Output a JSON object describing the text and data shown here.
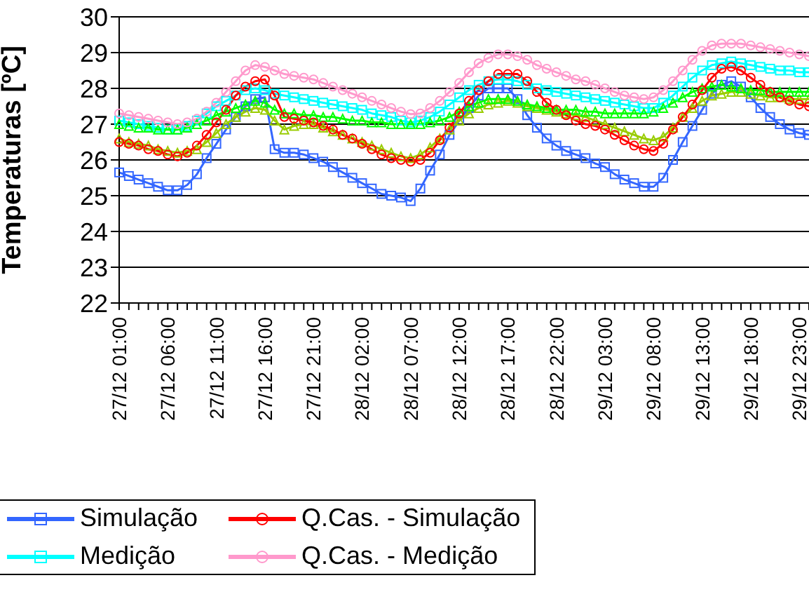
{
  "chart_data": {
    "type": "line",
    "ylabel": "Temperaturas [ºC]",
    "categories": [
      "27/12 01:00",
      null,
      null,
      null,
      null,
      "27/12 06:00",
      null,
      null,
      null,
      null,
      "27/12 11:00",
      null,
      null,
      null,
      null,
      "27/12 16:00",
      null,
      null,
      null,
      null,
      "27/12 21:00",
      null,
      null,
      null,
      null,
      "28/12 02:00",
      null,
      null,
      null,
      null,
      "28/12 07:00",
      null,
      null,
      null,
      null,
      "28/12 12:00",
      null,
      null,
      null,
      null,
      "28/12 17:00",
      null,
      null,
      null,
      null,
      "28/12 22:00",
      null,
      null,
      null,
      null,
      "29/12 03:00",
      null,
      null,
      null,
      null,
      "29/12 08:00",
      null,
      null,
      null,
      null,
      "29/12 13:00",
      null,
      null,
      null,
      null,
      "29/12 18:00",
      null,
      null,
      null,
      null,
      "29/12 23:00",
      null
    ],
    "series": [
      {
        "name": "Simulação",
        "color": "#3366ff",
        "marker": "square",
        "values": [
          25.65,
          25.55,
          25.45,
          25.35,
          25.25,
          25.15,
          25.15,
          25.3,
          25.6,
          26.05,
          26.45,
          26.85,
          27.2,
          27.5,
          27.7,
          27.75,
          26.3,
          26.2,
          26.2,
          26.15,
          26.05,
          25.95,
          25.8,
          25.65,
          25.5,
          25.35,
          25.2,
          25.05,
          25.0,
          24.95,
          24.85,
          25.2,
          25.7,
          26.15,
          26.7,
          27.1,
          27.45,
          27.8,
          28.0,
          28.0,
          28.0,
          27.7,
          27.25,
          26.9,
          26.6,
          26.4,
          26.25,
          26.15,
          26.05,
          25.9,
          25.8,
          25.6,
          25.45,
          25.35,
          25.25,
          25.25,
          25.5,
          26.0,
          26.5,
          26.95,
          27.4,
          27.85,
          28.1,
          28.2,
          28.05,
          27.75,
          27.45,
          27.2,
          27.0,
          26.85,
          26.75,
          26.7
        ]
      },
      {
        "name": "Medição",
        "color": "#00ffff",
        "marker": "square",
        "values": [
          27.1,
          27.05,
          27.0,
          26.95,
          26.9,
          26.85,
          26.85,
          26.95,
          27.1,
          27.3,
          27.5,
          27.65,
          27.8,
          27.95,
          28.0,
          27.95,
          27.85,
          27.8,
          27.75,
          27.7,
          27.65,
          27.6,
          27.55,
          27.5,
          27.45,
          27.4,
          27.3,
          27.25,
          27.2,
          27.1,
          27.05,
          27.1,
          27.2,
          27.35,
          27.55,
          27.75,
          27.95,
          28.1,
          28.2,
          28.25,
          28.25,
          28.2,
          28.1,
          28.0,
          27.95,
          27.9,
          27.85,
          27.8,
          27.75,
          27.7,
          27.65,
          27.6,
          27.55,
          27.5,
          27.45,
          27.45,
          27.6,
          27.8,
          28.05,
          28.3,
          28.5,
          28.65,
          28.7,
          28.75,
          28.7,
          28.65,
          28.6,
          28.55,
          28.5,
          28.5,
          28.45,
          28.45
        ]
      },
      {
        "color": "#99cc00",
        "marker": "triangle",
        "values": [
          26.6,
          26.5,
          26.45,
          26.4,
          26.3,
          26.25,
          26.2,
          26.25,
          26.3,
          26.5,
          26.75,
          27.0,
          27.2,
          27.35,
          27.45,
          27.4,
          27.1,
          26.85,
          26.95,
          27.0,
          27.0,
          26.9,
          26.8,
          26.7,
          26.6,
          26.5,
          26.4,
          26.3,
          26.2,
          26.1,
          26.05,
          26.15,
          26.35,
          26.6,
          26.85,
          27.1,
          27.3,
          27.45,
          27.55,
          27.6,
          27.65,
          27.6,
          27.5,
          27.45,
          27.4,
          27.35,
          27.3,
          27.25,
          27.2,
          27.1,
          27.0,
          26.9,
          26.8,
          26.7,
          26.6,
          26.55,
          26.65,
          26.9,
          27.2,
          27.45,
          27.65,
          27.8,
          27.85,
          27.9,
          27.9,
          27.85,
          27.8,
          27.75,
          27.75,
          27.7,
          27.7,
          27.7
        ]
      },
      {
        "color": "#00ff00",
        "marker": "triangle",
        "values": [
          27.0,
          26.95,
          26.9,
          26.9,
          26.85,
          26.85,
          26.85,
          26.9,
          27.0,
          27.1,
          27.25,
          27.35,
          27.45,
          27.55,
          27.65,
          27.6,
          27.4,
          27.3,
          27.3,
          27.25,
          27.25,
          27.2,
          27.2,
          27.15,
          27.1,
          27.1,
          27.05,
          27.05,
          27.0,
          27.0,
          27.0,
          27.0,
          27.05,
          27.1,
          27.2,
          27.35,
          27.5,
          27.6,
          27.7,
          27.7,
          27.7,
          27.65,
          27.55,
          27.5,
          27.45,
          27.4,
          27.4,
          27.4,
          27.35,
          27.35,
          27.3,
          27.3,
          27.3,
          27.3,
          27.3,
          27.35,
          27.45,
          27.6,
          27.75,
          27.9,
          28.0,
          28.05,
          28.1,
          28.05,
          28.0,
          27.95,
          27.95,
          27.9,
          27.9,
          27.9,
          27.9,
          27.9
        ]
      },
      {
        "name": "Q.Cas. - Simulação",
        "color": "#ff0000",
        "marker": "circle",
        "values": [
          26.5,
          26.45,
          26.4,
          26.3,
          26.25,
          26.15,
          26.1,
          26.2,
          26.4,
          26.7,
          27.05,
          27.4,
          27.8,
          28.05,
          28.2,
          28.25,
          27.8,
          27.2,
          27.15,
          27.1,
          27.05,
          26.95,
          26.85,
          26.7,
          26.6,
          26.45,
          26.3,
          26.15,
          26.05,
          26.0,
          25.95,
          26.0,
          26.2,
          26.55,
          26.9,
          27.3,
          27.65,
          27.95,
          28.2,
          28.4,
          28.4,
          28.4,
          28.2,
          27.9,
          27.6,
          27.4,
          27.25,
          27.1,
          27.0,
          26.95,
          26.85,
          26.7,
          26.55,
          26.4,
          26.3,
          26.25,
          26.45,
          26.85,
          27.2,
          27.55,
          27.95,
          28.3,
          28.55,
          28.6,
          28.5,
          28.3,
          28.1,
          27.9,
          27.75,
          27.65,
          27.55,
          27.5
        ]
      },
      {
        "name": "Q.Cas. - Medição",
        "color": "#ff99cc",
        "marker": "circle",
        "values": [
          27.3,
          27.25,
          27.2,
          27.15,
          27.1,
          27.05,
          27.0,
          27.05,
          27.15,
          27.35,
          27.6,
          27.9,
          28.2,
          28.5,
          28.65,
          28.6,
          28.5,
          28.4,
          28.35,
          28.3,
          28.25,
          28.15,
          28.05,
          27.95,
          27.85,
          27.75,
          27.65,
          27.55,
          27.45,
          27.35,
          27.28,
          27.3,
          27.45,
          27.65,
          27.9,
          28.15,
          28.45,
          28.7,
          28.85,
          28.95,
          28.95,
          28.9,
          28.8,
          28.65,
          28.55,
          28.45,
          28.35,
          28.25,
          28.2,
          28.1,
          28.0,
          27.9,
          27.8,
          27.75,
          27.7,
          27.75,
          27.95,
          28.2,
          28.5,
          28.8,
          29.05,
          29.2,
          29.25,
          29.25,
          29.25,
          29.2,
          29.15,
          29.1,
          29.05,
          29.0,
          28.95,
          28.9
        ]
      }
    ],
    "ylim": [
      22,
      30
    ],
    "yticks": [
      22,
      23,
      24,
      25,
      26,
      27,
      28,
      29,
      30
    ],
    "grid": "y",
    "legend": "bottom",
    "line_style": "solid"
  }
}
